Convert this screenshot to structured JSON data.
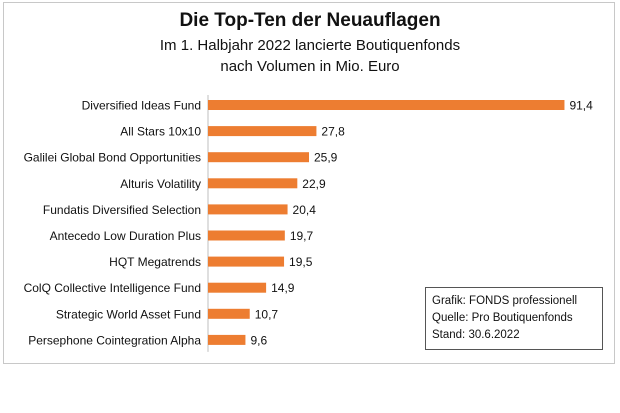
{
  "chart_data": {
    "type": "bar",
    "orientation": "horizontal",
    "title": "Die Top-Ten der Neuauflagen",
    "subtitle": [
      "Im 1. Halbjahr 2022 lancierte  Boutiquenfonds",
      "nach Volumen in Mio. Euro"
    ],
    "categories": [
      "Diversified Ideas Fund",
      "All Stars 10x10",
      "Galilei Global Bond Opportunities",
      "Alturis Volatility",
      "Fundatis Diversified Selection",
      "Antecedo Low Duration Plus",
      "HQT Megatrends",
      "ColQ Collective Intelligence Fund",
      "Strategic World Asset Fund",
      "Persephone Cointegration Alpha"
    ],
    "values": [
      91.4,
      27.8,
      25.9,
      22.9,
      20.4,
      19.7,
      19.5,
      14.9,
      10.7,
      9.6
    ],
    "value_labels": [
      "91,4",
      "27,8",
      "25,9",
      "22,9",
      "20,4",
      "19,7",
      "19,5",
      "14,9",
      "10,7",
      "9,6"
    ],
    "bar_color": "#ed7d31",
    "xlim": [
      0,
      100
    ],
    "grid": false,
    "legend": null
  },
  "source_box": {
    "line1": "Grafik: FONDS professionell",
    "line2": "Quelle: Pro Boutiquenfonds",
    "line3": "Stand: 30.6.2022"
  }
}
